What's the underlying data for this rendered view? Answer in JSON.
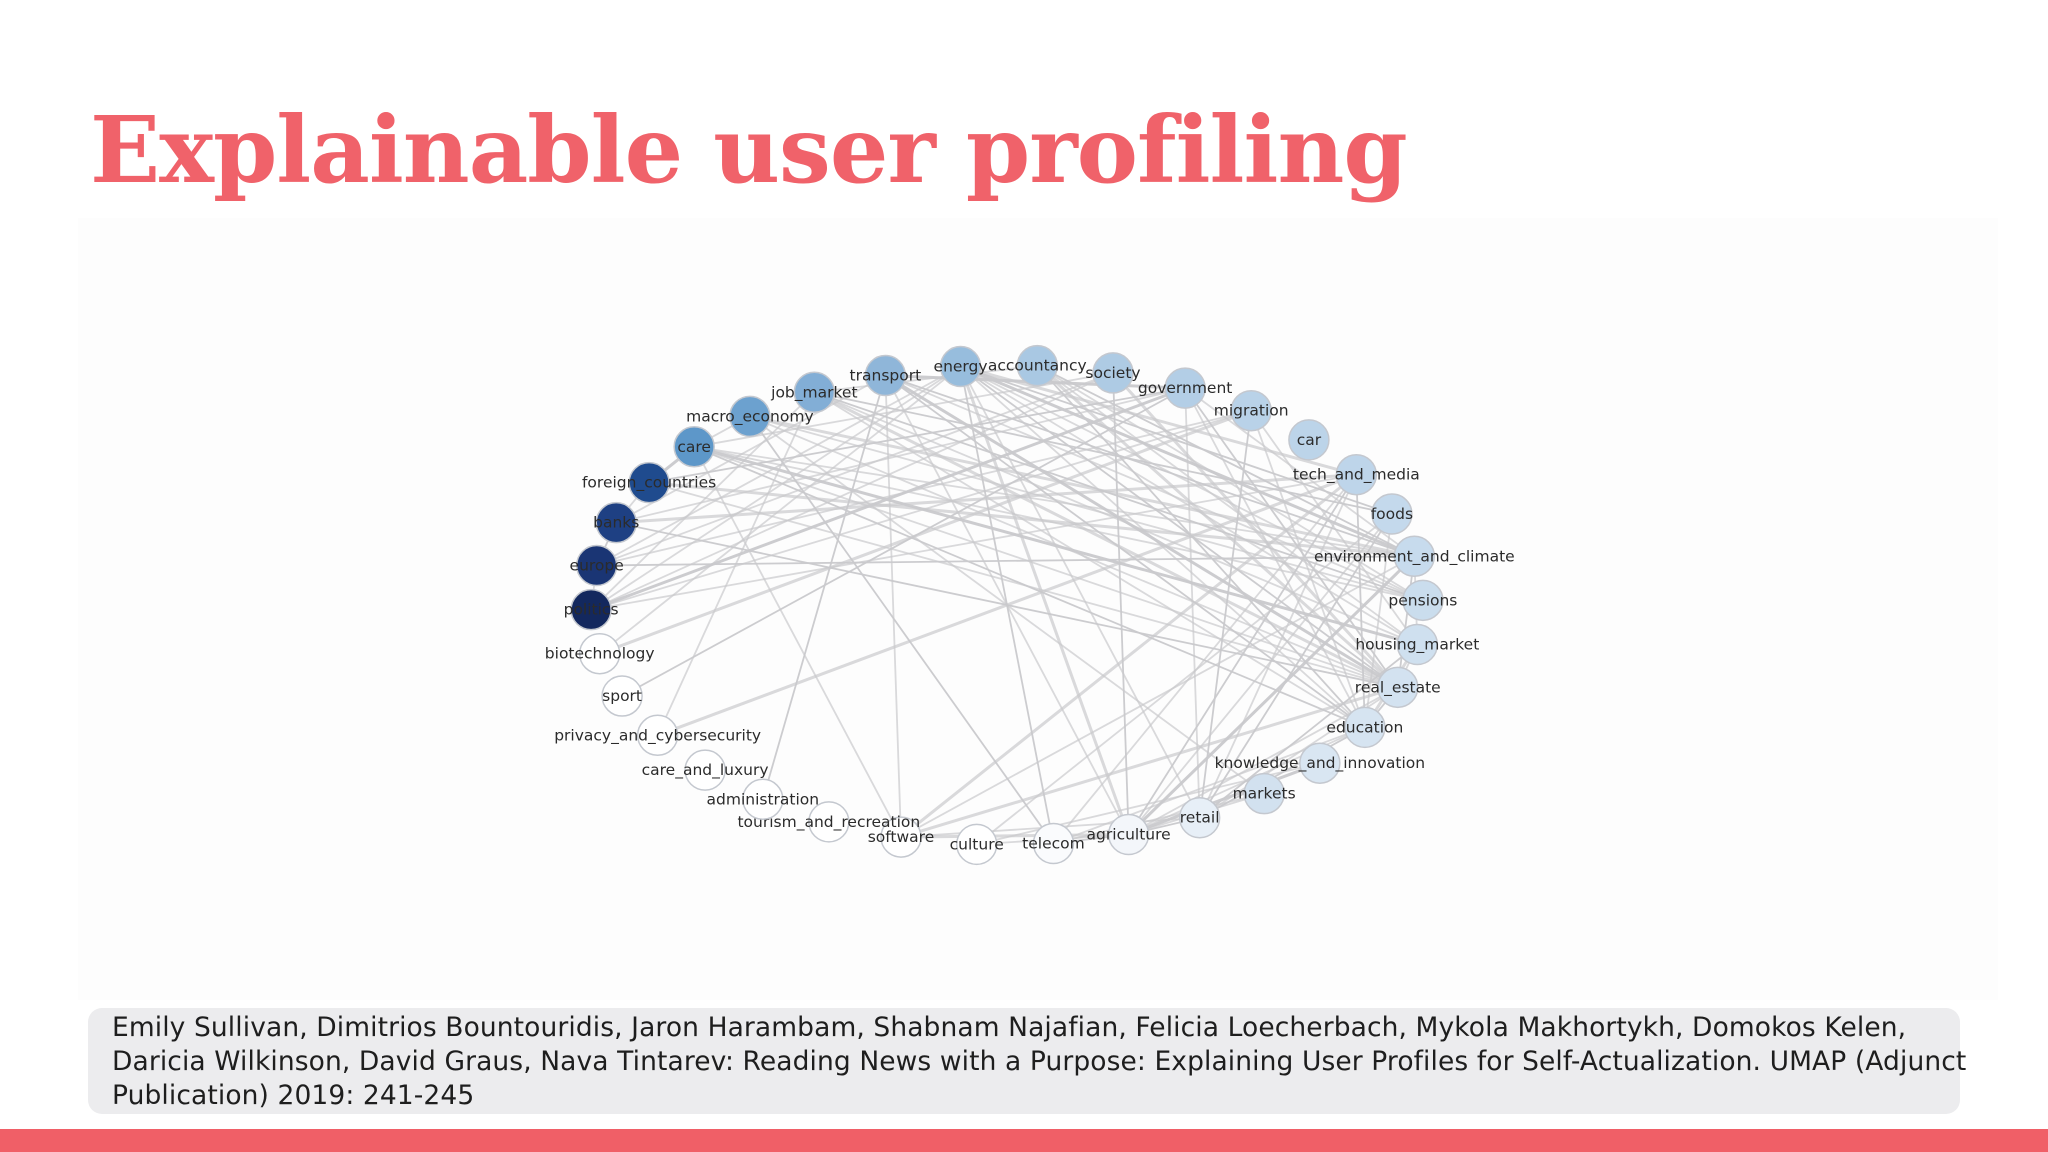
{
  "slide": {
    "title": "Explainable user profiling",
    "citation_lines": [
      "Emily Sullivan, Dimitrios Bountouridis, Jaron Harambam, Shabnam Najafian, Felicia Loecherbach, Mykola Makhortykh, Domokos Kelen,",
      "Daricia Wilkinson, David Graus, Nava Tintarev: Reading News with a Purpose: Explaining User Profiles for Self-Actualization. UMAP (Adjunct",
      "Publication) 2019: 241-245"
    ]
  },
  "colors": {
    "title": "#f0626a",
    "accent_bar": "#f05f67",
    "citation_bg": "#ececee",
    "edge": "#c9c9cc",
    "node_outline": "#c4c8cf"
  },
  "graph": {
    "nodes": [
      {
        "id": "transport",
        "label": "transport",
        "fill": "#8fb6d9"
      },
      {
        "id": "energy",
        "label": "energy",
        "fill": "#97bddd"
      },
      {
        "id": "accountancy",
        "label": "accountancy",
        "fill": "#a9c8e3"
      },
      {
        "id": "society",
        "label": "society",
        "fill": "#aecbe4"
      },
      {
        "id": "government",
        "label": "government",
        "fill": "#b3cee6"
      },
      {
        "id": "migration",
        "label": "migration",
        "fill": "#b9d2e8"
      },
      {
        "id": "car",
        "label": "car",
        "fill": "#bcd4e9"
      },
      {
        "id": "tech_and_media",
        "label": "tech_and_media",
        "fill": "#bed5ea"
      },
      {
        "id": "foods",
        "label": "foods",
        "fill": "#c4d9ec"
      },
      {
        "id": "environment_and_climate",
        "label": "environment_and_climate",
        "fill": "#c7dbed"
      },
      {
        "id": "pensions",
        "label": "pensions",
        "fill": "#cadded"
      },
      {
        "id": "housing_market",
        "label": "housing_market",
        "fill": "#cfe0ef"
      },
      {
        "id": "real_estate",
        "label": "real_estate",
        "fill": "#d3e2f0"
      },
      {
        "id": "education",
        "label": "education",
        "fill": "#d6e4f1"
      },
      {
        "id": "knowledge_and_innovation",
        "label": "knowledge_and_innovation",
        "fill": "#d9e6f2"
      },
      {
        "id": "markets",
        "label": "markets",
        "fill": "#d2e1ef"
      },
      {
        "id": "retail",
        "label": "retail",
        "fill": "#e7eff7"
      },
      {
        "id": "agriculture",
        "label": "agriculture",
        "fill": "#f3f6fa"
      },
      {
        "id": "telecom",
        "label": "telecom",
        "fill": "#fafbfd"
      },
      {
        "id": "culture",
        "label": "culture",
        "fill": "#ffffff"
      },
      {
        "id": "software",
        "label": "software",
        "fill": "#ffffff"
      },
      {
        "id": "tourism_and_recreation",
        "label": "tourism_and_recreation",
        "fill": "#ffffff"
      },
      {
        "id": "administration",
        "label": "administration",
        "fill": "#ffffff"
      },
      {
        "id": "care_and_luxury",
        "label": "care_and_luxury",
        "fill": "#ffffff"
      },
      {
        "id": "privacy_and_cybersecurity",
        "label": "privacy_and_cybersecurity",
        "fill": "#ffffff"
      },
      {
        "id": "sport",
        "label": "sport",
        "fill": "#ffffff"
      },
      {
        "id": "biotechnology",
        "label": "biotechnology",
        "fill": "#ffffff"
      },
      {
        "id": "politics",
        "label": "politics",
        "fill": "#13285e"
      },
      {
        "id": "europe",
        "label": "europe",
        "fill": "#1a3574"
      },
      {
        "id": "banks",
        "label": "banks",
        "fill": "#1e4083"
      },
      {
        "id": "foreign_countries",
        "label": "foreign_countries",
        "fill": "#1f4b8e"
      },
      {
        "id": "care",
        "label": "care",
        "fill": "#5d97c9"
      },
      {
        "id": "macro_economy",
        "label": "macro_economy",
        "fill": "#6ca1cf"
      },
      {
        "id": "job_market",
        "label": "job_market",
        "fill": "#82aed6"
      }
    ],
    "edges": [
      [
        "energy",
        "environment_and_climate"
      ],
      [
        "energy",
        "pensions"
      ],
      [
        "energy",
        "housing_market"
      ],
      [
        "energy",
        "real_estate"
      ],
      [
        "energy",
        "education"
      ],
      [
        "energy",
        "agriculture"
      ],
      [
        "energy",
        "telecom"
      ],
      [
        "energy",
        "europe"
      ],
      [
        "energy",
        "politics"
      ],
      [
        "energy",
        "foods"
      ],
      [
        "energy",
        "tech_and_media"
      ],
      [
        "energy",
        "retail"
      ],
      [
        "transport",
        "environment_and_climate"
      ],
      [
        "transport",
        "pensions"
      ],
      [
        "transport",
        "software"
      ],
      [
        "transport",
        "real_estate"
      ],
      [
        "transport",
        "agriculture"
      ],
      [
        "transport",
        "banks"
      ],
      [
        "transport",
        "education"
      ],
      [
        "job_market",
        "housing_market"
      ],
      [
        "job_market",
        "real_estate"
      ],
      [
        "job_market",
        "pensions"
      ],
      [
        "job_market",
        "politics"
      ],
      [
        "job_market",
        "education"
      ],
      [
        "job_market",
        "foods"
      ],
      [
        "macro_economy",
        "environment_and_climate"
      ],
      [
        "macro_economy",
        "real_estate"
      ],
      [
        "macro_economy",
        "telecom"
      ],
      [
        "macro_economy",
        "markets"
      ],
      [
        "macro_economy",
        "pensions"
      ],
      [
        "care",
        "housing_market"
      ],
      [
        "care",
        "real_estate"
      ],
      [
        "care",
        "pensions"
      ],
      [
        "care",
        "education"
      ],
      [
        "care",
        "environment_and_climate"
      ],
      [
        "foreign_countries",
        "environment_and_climate"
      ],
      [
        "foreign_countries",
        "government"
      ],
      [
        "foreign_countries",
        "real_estate"
      ],
      [
        "banks",
        "government"
      ],
      [
        "banks",
        "real_estate"
      ],
      [
        "banks",
        "tech_and_media"
      ],
      [
        "europe",
        "migration"
      ],
      [
        "europe",
        "environment_and_climate"
      ],
      [
        "europe",
        "society"
      ],
      [
        "politics",
        "migration"
      ],
      [
        "politics",
        "government"
      ],
      [
        "politics",
        "tech_and_media"
      ],
      [
        "politics",
        "society"
      ],
      [
        "accountancy",
        "environment_and_climate"
      ],
      [
        "accountancy",
        "pensions"
      ],
      [
        "accountancy",
        "real_estate"
      ],
      [
        "accountancy",
        "education"
      ],
      [
        "accountancy",
        "job_market"
      ],
      [
        "accountancy",
        "housing_market"
      ],
      [
        "society",
        "agriculture"
      ],
      [
        "society",
        "real_estate"
      ],
      [
        "society",
        "care"
      ],
      [
        "government",
        "real_estate"
      ],
      [
        "government",
        "education"
      ],
      [
        "government",
        "retail"
      ],
      [
        "government",
        "transport"
      ],
      [
        "government",
        "environment_and_climate"
      ],
      [
        "migration",
        "education"
      ],
      [
        "migration",
        "retail"
      ],
      [
        "migration",
        "housing_market"
      ],
      [
        "tech_and_media",
        "software"
      ],
      [
        "tech_and_media",
        "agriculture"
      ],
      [
        "tech_and_media",
        "retail"
      ],
      [
        "tech_and_media",
        "telecom"
      ],
      [
        "tech_and_media",
        "education"
      ],
      [
        "tech_and_media",
        "privacy_and_cybersecurity"
      ],
      [
        "foods",
        "agriculture"
      ],
      [
        "foods",
        "retail"
      ],
      [
        "foods",
        "culture"
      ],
      [
        "foods",
        "education"
      ],
      [
        "environment_and_climate",
        "agriculture"
      ],
      [
        "environment_and_climate",
        "software"
      ],
      [
        "environment_and_climate",
        "housing_market"
      ],
      [
        "environment_and_climate",
        "real_estate"
      ],
      [
        "housing_market",
        "real_estate"
      ],
      [
        "housing_market",
        "education"
      ],
      [
        "housing_market",
        "retail"
      ],
      [
        "real_estate",
        "retail"
      ],
      [
        "real_estate",
        "agriculture"
      ],
      [
        "real_estate",
        "education"
      ],
      [
        "real_estate",
        "software"
      ],
      [
        "education",
        "agriculture"
      ],
      [
        "education",
        "retail"
      ],
      [
        "education",
        "telecom"
      ],
      [
        "knowledge_and_innovation",
        "culture"
      ],
      [
        "knowledge_and_innovation",
        "agriculture"
      ],
      [
        "markets",
        "agriculture"
      ],
      [
        "markets",
        "telecom"
      ],
      [
        "retail",
        "agriculture"
      ],
      [
        "retail",
        "software"
      ],
      [
        "agriculture",
        "software"
      ],
      [
        "agriculture",
        "telecom"
      ],
      [
        "agriculture",
        "culture"
      ],
      [
        "software",
        "care"
      ],
      [
        "sport",
        "government"
      ],
      [
        "biotechnology",
        "migration"
      ],
      [
        "biotechnology",
        "energy"
      ],
      [
        "europe",
        "banks"
      ],
      [
        "politics",
        "europe"
      ],
      [
        "banks",
        "foreign_countries"
      ],
      [
        "foreign_countries",
        "care"
      ],
      [
        "care",
        "macro_economy"
      ],
      [
        "privacy_and_cybersecurity",
        "job_market"
      ],
      [
        "administration",
        "transport"
      ]
    ]
  }
}
